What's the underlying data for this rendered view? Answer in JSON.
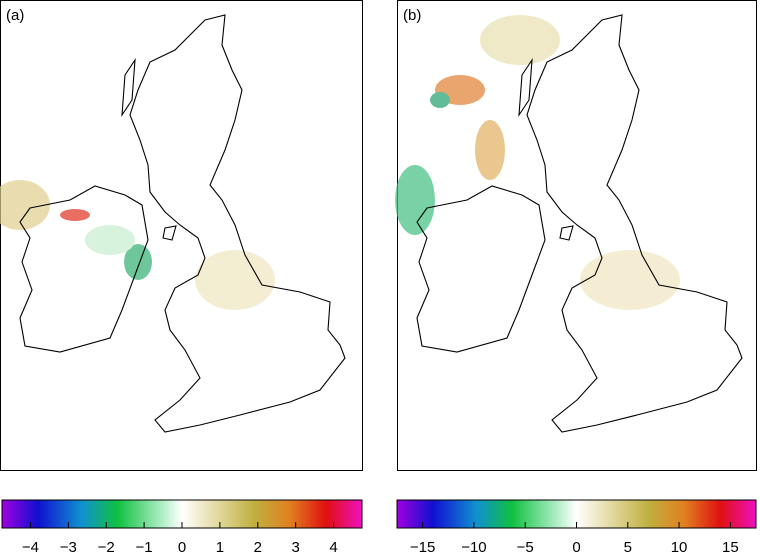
{
  "panels": [
    {
      "label": "(a)",
      "colorbar": {
        "lim": [
          -4.75,
          4.75
        ],
        "ticks": [
          {
            "value": -4,
            "label": "−4"
          },
          {
            "value": -3,
            "label": "−3"
          },
          {
            "value": -2,
            "label": "−2"
          },
          {
            "value": -1,
            "label": "−1"
          },
          0,
          1,
          2,
          3,
          4
        ]
      }
    },
    {
      "label": "(b)",
      "colorbar": {
        "lim": [
          -17.5,
          17.5
        ],
        "ticks": [
          {
            "value": -15,
            "label": "−15"
          },
          {
            "value": -10,
            "label": "−10"
          },
          {
            "value": -5,
            "label": "−5"
          },
          0,
          5,
          10,
          15
        ]
      }
    }
  ]
}
